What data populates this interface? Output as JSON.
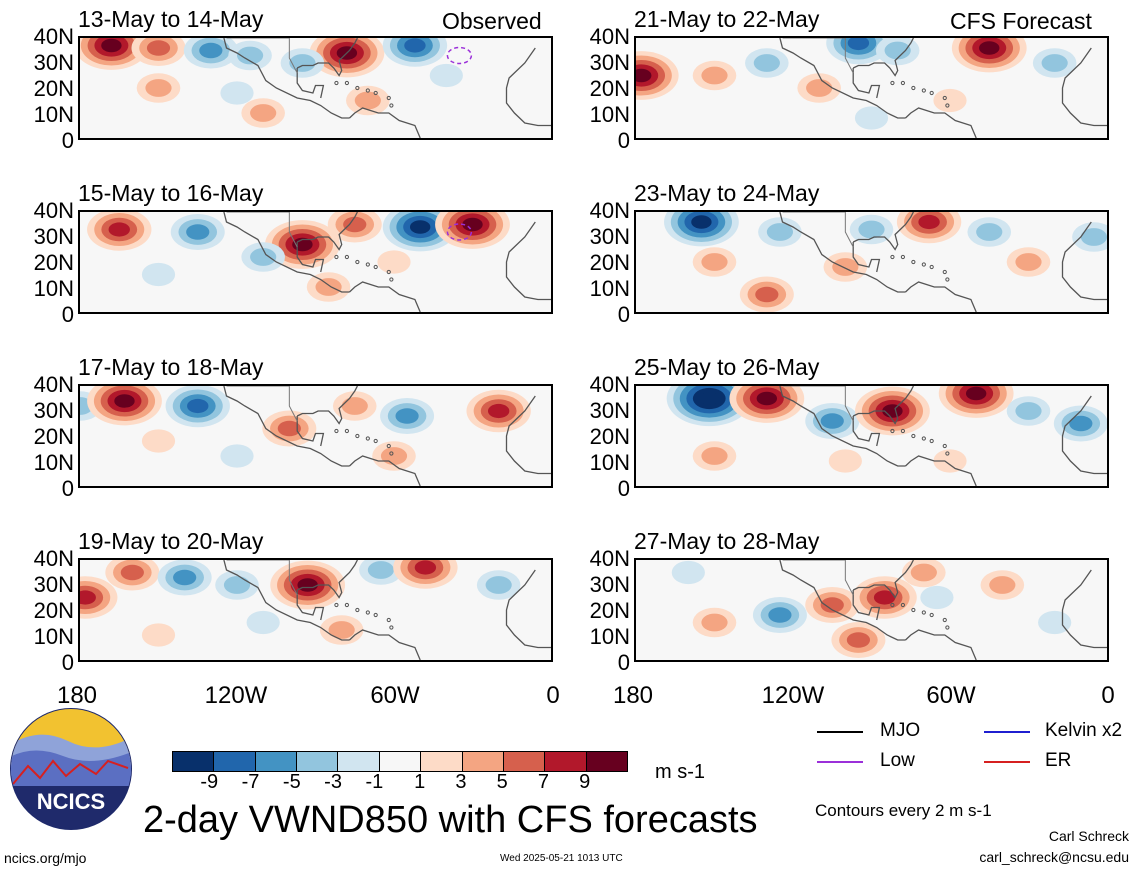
{
  "chart_data": {
    "type": "heatmap",
    "title": "2-day VWND850 with CFS forecasts",
    "units": "m s-1",
    "contour_note": "Contours every 2 m s-1",
    "column_labels": [
      "Observed",
      "CFS Forecast"
    ],
    "y_ticks": [
      "40N",
      "30N",
      "20N",
      "10N",
      "0"
    ],
    "x_ticks": [
      "180",
      "120W",
      "60W",
      "0"
    ],
    "lat_range": [
      0,
      40
    ],
    "lon_range": [
      -180,
      0
    ],
    "colorbar": {
      "ticks": [
        "-9",
        "-7",
        "-5",
        "-3",
        "-1",
        "1",
        "3",
        "5",
        "7",
        "9"
      ],
      "colors": [
        "#08306b",
        "#2166ac",
        "#4393c3",
        "#92c5de",
        "#d1e5f0",
        "#f7f7f7",
        "#fddbc7",
        "#f4a582",
        "#d6604d",
        "#b2182b",
        "#67001f"
      ]
    },
    "legend": [
      {
        "label": "MJO",
        "color": "#000000"
      },
      {
        "label": "Kelvin x2",
        "color": "#1f1fd0"
      },
      {
        "label": "Low",
        "color": "#9b30d9"
      },
      {
        "label": "ER",
        "color": "#d62020"
      }
    ],
    "panels": [
      {
        "title": "13-May to 14-May",
        "column": "Observed",
        "anomalies": [
          {
            "lon": -168,
            "lat": 37,
            "value": 9
          },
          {
            "lon": -150,
            "lat": 36,
            "value": 5
          },
          {
            "lon": -130,
            "lat": 35,
            "value": -5
          },
          {
            "lon": -115,
            "lat": 33,
            "value": -3
          },
          {
            "lon": -78,
            "lat": 34,
            "value": 9
          },
          {
            "lon": -52,
            "lat": 37,
            "value": -7
          },
          {
            "lon": -95,
            "lat": 30,
            "value": -3
          },
          {
            "lon": -150,
            "lat": 20,
            "value": 3
          },
          {
            "lon": -110,
            "lat": 10,
            "value": 3
          },
          {
            "lon": -40,
            "lat": 25,
            "value": -1
          },
          {
            "lon": -120,
            "lat": 18,
            "value": -1
          },
          {
            "lon": -70,
            "lat": 15,
            "value": 3
          }
        ],
        "lows": [
          {
            "lon": -35,
            "lat": 33
          }
        ]
      },
      {
        "title": "21-May to 22-May",
        "column": "CFS Forecast",
        "anomalies": [
          {
            "lon": -178,
            "lat": 25,
            "value": 9
          },
          {
            "lon": -45,
            "lat": 36,
            "value": 9
          },
          {
            "lon": -95,
            "lat": 38,
            "value": -7
          },
          {
            "lon": -130,
            "lat": 30,
            "value": -3
          },
          {
            "lon": -150,
            "lat": 25,
            "value": 3
          },
          {
            "lon": -80,
            "lat": 35,
            "value": -3
          },
          {
            "lon": -110,
            "lat": 20,
            "value": 3
          },
          {
            "lon": -20,
            "lat": 30,
            "value": -3
          },
          {
            "lon": -60,
            "lat": 15,
            "value": 1
          },
          {
            "lon": -90,
            "lat": 8,
            "value": -1
          }
        ],
        "lows": []
      },
      {
        "title": "15-May to 16-May",
        "column": "Observed",
        "anomalies": [
          {
            "lon": -165,
            "lat": 33,
            "value": 7
          },
          {
            "lon": -135,
            "lat": 32,
            "value": -5
          },
          {
            "lon": -95,
            "lat": 27,
            "value": 9
          },
          {
            "lon": -75,
            "lat": 35,
            "value": 5
          },
          {
            "lon": -50,
            "lat": 34,
            "value": -9
          },
          {
            "lon": -30,
            "lat": 35,
            "value": 9
          },
          {
            "lon": -110,
            "lat": 22,
            "value": -3
          },
          {
            "lon": -150,
            "lat": 15,
            "value": -1
          },
          {
            "lon": -85,
            "lat": 10,
            "value": 3
          },
          {
            "lon": -60,
            "lat": 20,
            "value": 1
          }
        ],
        "lows": [
          {
            "lon": -35,
            "lat": 32
          }
        ]
      },
      {
        "title": "23-May to 24-May",
        "column": "CFS Forecast",
        "anomalies": [
          {
            "lon": -155,
            "lat": 36,
            "value": -9
          },
          {
            "lon": -125,
            "lat": 32,
            "value": -3
          },
          {
            "lon": -90,
            "lat": 33,
            "value": -3
          },
          {
            "lon": -68,
            "lat": 36,
            "value": 7
          },
          {
            "lon": -45,
            "lat": 32,
            "value": -3
          },
          {
            "lon": -130,
            "lat": 7,
            "value": 5
          },
          {
            "lon": -150,
            "lat": 20,
            "value": 3
          },
          {
            "lon": -100,
            "lat": 18,
            "value": 3
          },
          {
            "lon": -30,
            "lat": 20,
            "value": 3
          },
          {
            "lon": -5,
            "lat": 30,
            "value": -3
          }
        ],
        "lows": []
      },
      {
        "title": "17-May to 18-May",
        "column": "Observed",
        "anomalies": [
          {
            "lon": -180,
            "lat": 32,
            "value": -3
          },
          {
            "lon": -163,
            "lat": 34,
            "value": 9
          },
          {
            "lon": -135,
            "lat": 32,
            "value": -7
          },
          {
            "lon": -100,
            "lat": 23,
            "value": 5
          },
          {
            "lon": -75,
            "lat": 32,
            "value": 3
          },
          {
            "lon": -55,
            "lat": 28,
            "value": -5
          },
          {
            "lon": -20,
            "lat": 30,
            "value": 7
          },
          {
            "lon": -120,
            "lat": 12,
            "value": -1
          },
          {
            "lon": -150,
            "lat": 18,
            "value": 1
          },
          {
            "lon": -60,
            "lat": 12,
            "value": 3
          }
        ],
        "lows": []
      },
      {
        "title": "25-May to 26-May",
        "column": "CFS Forecast",
        "anomalies": [
          {
            "lon": -152,
            "lat": 35,
            "value": -11
          },
          {
            "lon": -130,
            "lat": 35,
            "value": 9
          },
          {
            "lon": -105,
            "lat": 26,
            "value": -5
          },
          {
            "lon": -82,
            "lat": 30,
            "value": 9
          },
          {
            "lon": -50,
            "lat": 37,
            "value": 9
          },
          {
            "lon": -30,
            "lat": 30,
            "value": -3
          },
          {
            "lon": -10,
            "lat": 25,
            "value": -5
          },
          {
            "lon": -150,
            "lat": 12,
            "value": 3
          },
          {
            "lon": -60,
            "lat": 10,
            "value": 1
          },
          {
            "lon": -100,
            "lat": 10,
            "value": 1
          }
        ],
        "lows": []
      },
      {
        "title": "19-May to 20-May",
        "column": "Observed",
        "anomalies": [
          {
            "lon": -178,
            "lat": 25,
            "value": 7
          },
          {
            "lon": -160,
            "lat": 35,
            "value": 5
          },
          {
            "lon": -140,
            "lat": 33,
            "value": -5
          },
          {
            "lon": -120,
            "lat": 30,
            "value": -3
          },
          {
            "lon": -93,
            "lat": 30,
            "value": 9
          },
          {
            "lon": -65,
            "lat": 36,
            "value": -3
          },
          {
            "lon": -48,
            "lat": 37,
            "value": 7
          },
          {
            "lon": -20,
            "lat": 30,
            "value": -3
          },
          {
            "lon": -110,
            "lat": 15,
            "value": -1
          },
          {
            "lon": -80,
            "lat": 12,
            "value": 3
          },
          {
            "lon": -150,
            "lat": 10,
            "value": 1
          }
        ],
        "lows": []
      },
      {
        "title": "27-May to 28-May",
        "column": "CFS Forecast",
        "anomalies": [
          {
            "lon": -125,
            "lat": 18,
            "value": -5
          },
          {
            "lon": -105,
            "lat": 22,
            "value": 5
          },
          {
            "lon": -85,
            "lat": 25,
            "value": 7
          },
          {
            "lon": -65,
            "lat": 25,
            "value": -1
          },
          {
            "lon": -40,
            "lat": 30,
            "value": 3
          },
          {
            "lon": -150,
            "lat": 15,
            "value": 3
          },
          {
            "lon": -95,
            "lat": 8,
            "value": 5
          },
          {
            "lon": -20,
            "lat": 15,
            "value": -1
          },
          {
            "lon": -160,
            "lat": 35,
            "value": -1
          },
          {
            "lon": -70,
            "lat": 35,
            "value": 3
          }
        ],
        "lows": []
      }
    ]
  },
  "branding": {
    "logo_text": "NCICS",
    "url": "ncics.org/mjo",
    "timestamp": "Wed 2025-05-21 1013 UTC",
    "author": "Carl Schreck",
    "email": "carl_schreck@ncsu.edu"
  }
}
